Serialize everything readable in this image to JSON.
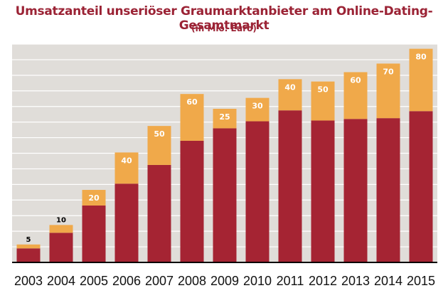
{
  "chart_data": {
    "type": "bar",
    "stacked": true,
    "title": "Umsatzanteil unseriöser Graumarktanbieter am Online-Dating-Gesamtmarkt",
    "subtitle": "(in Mio. Euro)",
    "categories": [
      "2003",
      "2004",
      "2005",
      "2006",
      "2007",
      "2008",
      "2009",
      "2010",
      "2011",
      "2012",
      "2013",
      "2014",
      "2015"
    ],
    "series": [
      {
        "values": [
          18,
          38,
          73,
          101,
          125,
          156,
          172,
          181,
          195,
          182,
          184,
          185,
          194
        ]
      },
      {
        "values": [
          5,
          10,
          20,
          40,
          50,
          60,
          25,
          30,
          40,
          50,
          60,
          70,
          80
        ]
      }
    ],
    "data_labels": [
      "5",
      "10",
      "20",
      "40",
      "50",
      "60",
      "25",
      "30",
      "40",
      "50",
      "60",
      "70",
      "80"
    ],
    "ylim": [
      0,
      280
    ],
    "grid": true,
    "colors": {
      "base": "#a52433",
      "top": "#f0a94a",
      "title": "#9b2335",
      "plot_bg": "#e0ddd9",
      "grid": "#ffffff",
      "axis": "#000000"
    }
  }
}
